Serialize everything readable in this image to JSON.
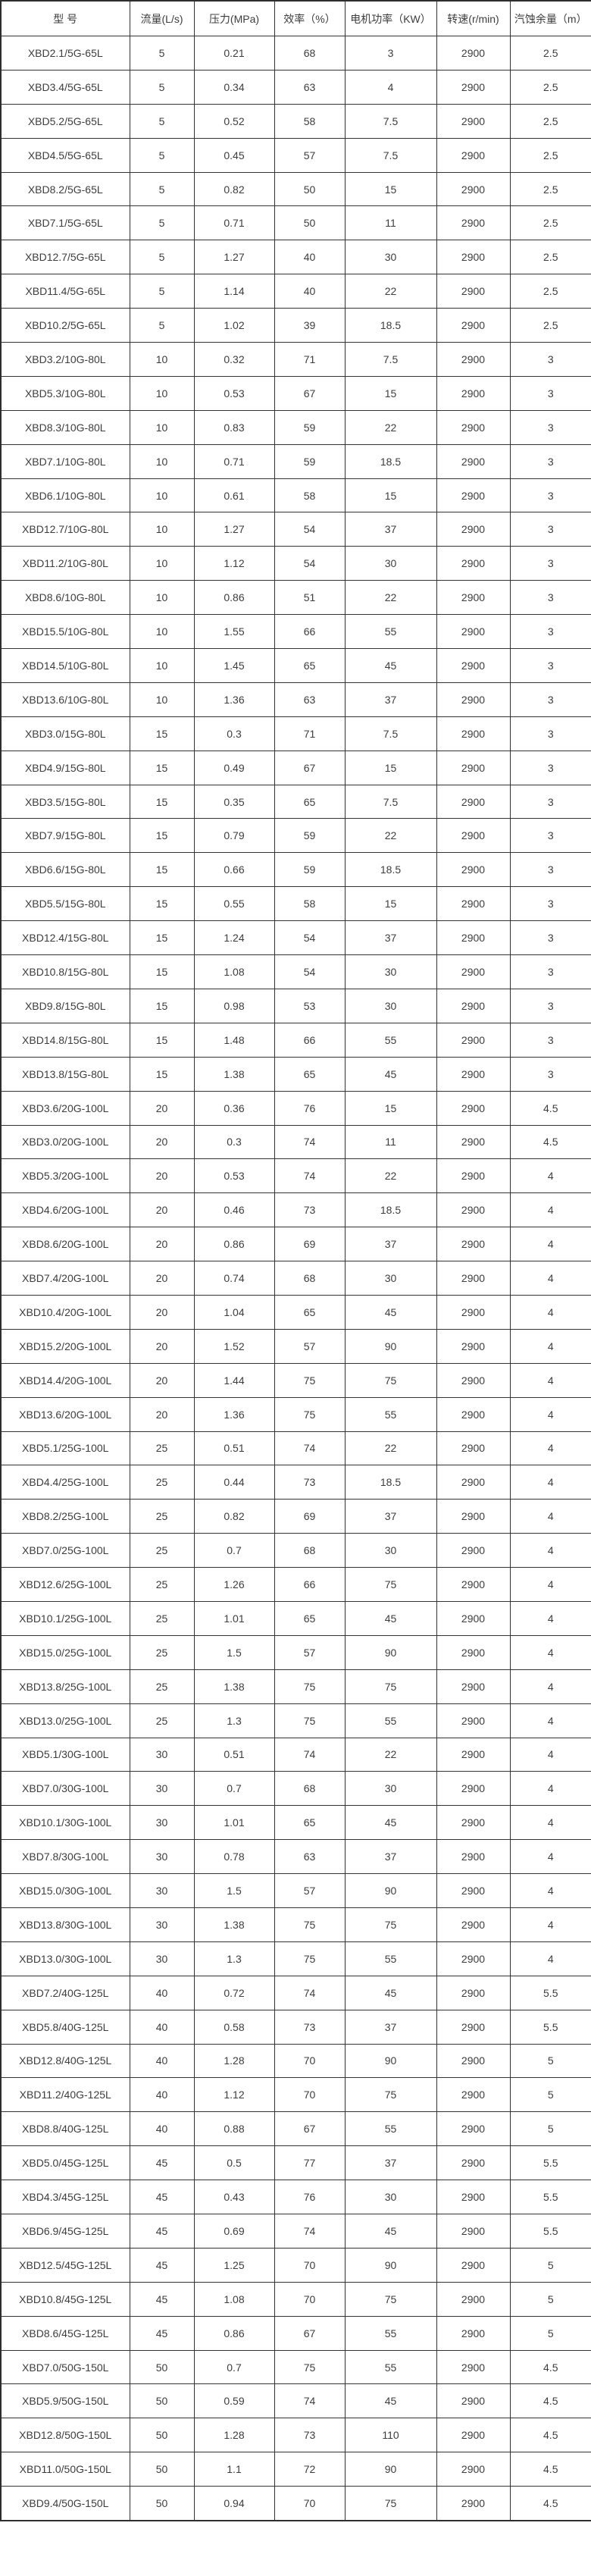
{
  "colors": {
    "background": "#ffffff",
    "border": "#333333",
    "text": "#3d3d3d"
  },
  "table": {
    "columns": [
      "型 号",
      "流量(L/s)",
      "压力(MPa)",
      "效率（%）",
      "电机功率（KW）",
      "转速(r/min)",
      "汽蚀余量（m）"
    ],
    "rows": [
      [
        "XBD2.1/5G-65L",
        "5",
        "0.21",
        "68",
        "3",
        "2900",
        "2.5"
      ],
      [
        "XBD3.4/5G-65L",
        "5",
        "0.34",
        "63",
        "4",
        "2900",
        "2.5"
      ],
      [
        "XBD5.2/5G-65L",
        "5",
        "0.52",
        "58",
        "7.5",
        "2900",
        "2.5"
      ],
      [
        "XBD4.5/5G-65L",
        "5",
        "0.45",
        "57",
        "7.5",
        "2900",
        "2.5"
      ],
      [
        "XBD8.2/5G-65L",
        "5",
        "0.82",
        "50",
        "15",
        "2900",
        "2.5"
      ],
      [
        "XBD7.1/5G-65L",
        "5",
        "0.71",
        "50",
        "11",
        "2900",
        "2.5"
      ],
      [
        "XBD12.7/5G-65L",
        "5",
        "1.27",
        "40",
        "30",
        "2900",
        "2.5"
      ],
      [
        "XBD11.4/5G-65L",
        "5",
        "1.14",
        "40",
        "22",
        "2900",
        "2.5"
      ],
      [
        "XBD10.2/5G-65L",
        "5",
        "1.02",
        "39",
        "18.5",
        "2900",
        "2.5"
      ],
      [
        "XBD3.2/10G-80L",
        "10",
        "0.32",
        "71",
        "7.5",
        "2900",
        "3"
      ],
      [
        "XBD5.3/10G-80L",
        "10",
        "0.53",
        "67",
        "15",
        "2900",
        "3"
      ],
      [
        "XBD8.3/10G-80L",
        "10",
        "0.83",
        "59",
        "22",
        "2900",
        "3"
      ],
      [
        "XBD7.1/10G-80L",
        "10",
        "0.71",
        "59",
        "18.5",
        "2900",
        "3"
      ],
      [
        "XBD6.1/10G-80L",
        "10",
        "0.61",
        "58",
        "15",
        "2900",
        "3"
      ],
      [
        "XBD12.7/10G-80L",
        "10",
        "1.27",
        "54",
        "37",
        "2900",
        "3"
      ],
      [
        "XBD11.2/10G-80L",
        "10",
        "1.12",
        "54",
        "30",
        "2900",
        "3"
      ],
      [
        "XBD8.6/10G-80L",
        "10",
        "0.86",
        "51",
        "22",
        "2900",
        "3"
      ],
      [
        "XBD15.5/10G-80L",
        "10",
        "1.55",
        "66",
        "55",
        "2900",
        "3"
      ],
      [
        "XBD14.5/10G-80L",
        "10",
        "1.45",
        "65",
        "45",
        "2900",
        "3"
      ],
      [
        "XBD13.6/10G-80L",
        "10",
        "1.36",
        "63",
        "37",
        "2900",
        "3"
      ],
      [
        "XBD3.0/15G-80L",
        "15",
        "0.3",
        "71",
        "7.5",
        "2900",
        "3"
      ],
      [
        "XBD4.9/15G-80L",
        "15",
        "0.49",
        "67",
        "15",
        "2900",
        "3"
      ],
      [
        "XBD3.5/15G-80L",
        "15",
        "0.35",
        "65",
        "7.5",
        "2900",
        "3"
      ],
      [
        "XBD7.9/15G-80L",
        "15",
        "0.79",
        "59",
        "22",
        "2900",
        "3"
      ],
      [
        "XBD6.6/15G-80L",
        "15",
        "0.66",
        "59",
        "18.5",
        "2900",
        "3"
      ],
      [
        "XBD5.5/15G-80L",
        "15",
        "0.55",
        "58",
        "15",
        "2900",
        "3"
      ],
      [
        "XBD12.4/15G-80L",
        "15",
        "1.24",
        "54",
        "37",
        "2900",
        "3"
      ],
      [
        "XBD10.8/15G-80L",
        "15",
        "1.08",
        "54",
        "30",
        "2900",
        "3"
      ],
      [
        "XBD9.8/15G-80L",
        "15",
        "0.98",
        "53",
        "30",
        "2900",
        "3"
      ],
      [
        "XBD14.8/15G-80L",
        "15",
        "1.48",
        "66",
        "55",
        "2900",
        "3"
      ],
      [
        "XBD13.8/15G-80L",
        "15",
        "1.38",
        "65",
        "45",
        "2900",
        "3"
      ],
      [
        "XBD3.6/20G-100L",
        "20",
        "0.36",
        "76",
        "15",
        "2900",
        "4.5"
      ],
      [
        "XBD3.0/20G-100L",
        "20",
        "0.3",
        "74",
        "11",
        "2900",
        "4.5"
      ],
      [
        "XBD5.3/20G-100L",
        "20",
        "0.53",
        "74",
        "22",
        "2900",
        "4"
      ],
      [
        "XBD4.6/20G-100L",
        "20",
        "0.46",
        "73",
        "18.5",
        "2900",
        "4"
      ],
      [
        "XBD8.6/20G-100L",
        "20",
        "0.86",
        "69",
        "37",
        "2900",
        "4"
      ],
      [
        "XBD7.4/20G-100L",
        "20",
        "0.74",
        "68",
        "30",
        "2900",
        "4"
      ],
      [
        "XBD10.4/20G-100L",
        "20",
        "1.04",
        "65",
        "45",
        "2900",
        "4"
      ],
      [
        "XBD15.2/20G-100L",
        "20",
        "1.52",
        "57",
        "90",
        "2900",
        "4"
      ],
      [
        "XBD14.4/20G-100L",
        "20",
        "1.44",
        "75",
        "75",
        "2900",
        "4"
      ],
      [
        "XBD13.6/20G-100L",
        "20",
        "1.36",
        "75",
        "55",
        "2900",
        "4"
      ],
      [
        "XBD5.1/25G-100L",
        "25",
        "0.51",
        "74",
        "22",
        "2900",
        "4"
      ],
      [
        "XBD4.4/25G-100L",
        "25",
        "0.44",
        "73",
        "18.5",
        "2900",
        "4"
      ],
      [
        "XBD8.2/25G-100L",
        "25",
        "0.82",
        "69",
        "37",
        "2900",
        "4"
      ],
      [
        "XBD7.0/25G-100L",
        "25",
        "0.7",
        "68",
        "30",
        "2900",
        "4"
      ],
      [
        "XBD12.6/25G-100L",
        "25",
        "1.26",
        "66",
        "75",
        "2900",
        "4"
      ],
      [
        "XBD10.1/25G-100L",
        "25",
        "1.01",
        "65",
        "45",
        "2900",
        "4"
      ],
      [
        "XBD15.0/25G-100L",
        "25",
        "1.5",
        "57",
        "90",
        "2900",
        "4"
      ],
      [
        "XBD13.8/25G-100L",
        "25",
        "1.38",
        "75",
        "75",
        "2900",
        "4"
      ],
      [
        "XBD13.0/25G-100L",
        "25",
        "1.3",
        "75",
        "55",
        "2900",
        "4"
      ],
      [
        "XBD5.1/30G-100L",
        "30",
        "0.51",
        "74",
        "22",
        "2900",
        "4"
      ],
      [
        "XBD7.0/30G-100L",
        "30",
        "0.7",
        "68",
        "30",
        "2900",
        "4"
      ],
      [
        "XBD10.1/30G-100L",
        "30",
        "1.01",
        "65",
        "45",
        "2900",
        "4"
      ],
      [
        "XBD7.8/30G-100L",
        "30",
        "0.78",
        "63",
        "37",
        "2900",
        "4"
      ],
      [
        "XBD15.0/30G-100L",
        "30",
        "1.5",
        "57",
        "90",
        "2900",
        "4"
      ],
      [
        "XBD13.8/30G-100L",
        "30",
        "1.38",
        "75",
        "75",
        "2900",
        "4"
      ],
      [
        "XBD13.0/30G-100L",
        "30",
        "1.3",
        "75",
        "55",
        "2900",
        "4"
      ],
      [
        "XBD7.2/40G-125L",
        "40",
        "0.72",
        "74",
        "45",
        "2900",
        "5.5"
      ],
      [
        "XBD5.8/40G-125L",
        "40",
        "0.58",
        "73",
        "37",
        "2900",
        "5.5"
      ],
      [
        "XBD12.8/40G-125L",
        "40",
        "1.28",
        "70",
        "90",
        "2900",
        "5"
      ],
      [
        "XBD11.2/40G-125L",
        "40",
        "1.12",
        "70",
        "75",
        "2900",
        "5"
      ],
      [
        "XBD8.8/40G-125L",
        "40",
        "0.88",
        "67",
        "55",
        "2900",
        "5"
      ],
      [
        "XBD5.0/45G-125L",
        "45",
        "0.5",
        "77",
        "37",
        "2900",
        "5.5"
      ],
      [
        "XBD4.3/45G-125L",
        "45",
        "0.43",
        "76",
        "30",
        "2900",
        "5.5"
      ],
      [
        "XBD6.9/45G-125L",
        "45",
        "0.69",
        "74",
        "45",
        "2900",
        "5.5"
      ],
      [
        "XBD12.5/45G-125L",
        "45",
        "1.25",
        "70",
        "90",
        "2900",
        "5"
      ],
      [
        "XBD10.8/45G-125L",
        "45",
        "1.08",
        "70",
        "75",
        "2900",
        "5"
      ],
      [
        "XBD8.6/45G-125L",
        "45",
        "0.86",
        "67",
        "55",
        "2900",
        "5"
      ],
      [
        "XBD7.0/50G-150L",
        "50",
        "0.7",
        "75",
        "55",
        "2900",
        "4.5"
      ],
      [
        "XBD5.9/50G-150L",
        "50",
        "0.59",
        "74",
        "45",
        "2900",
        "4.5"
      ],
      [
        "XBD12.8/50G-150L",
        "50",
        "1.28",
        "73",
        "110",
        "2900",
        "4.5"
      ],
      [
        "XBD11.0/50G-150L",
        "50",
        "1.1",
        "72",
        "90",
        "2900",
        "4.5"
      ],
      [
        "XBD9.4/50G-150L",
        "50",
        "0.94",
        "70",
        "75",
        "2900",
        "4.5"
      ]
    ]
  }
}
